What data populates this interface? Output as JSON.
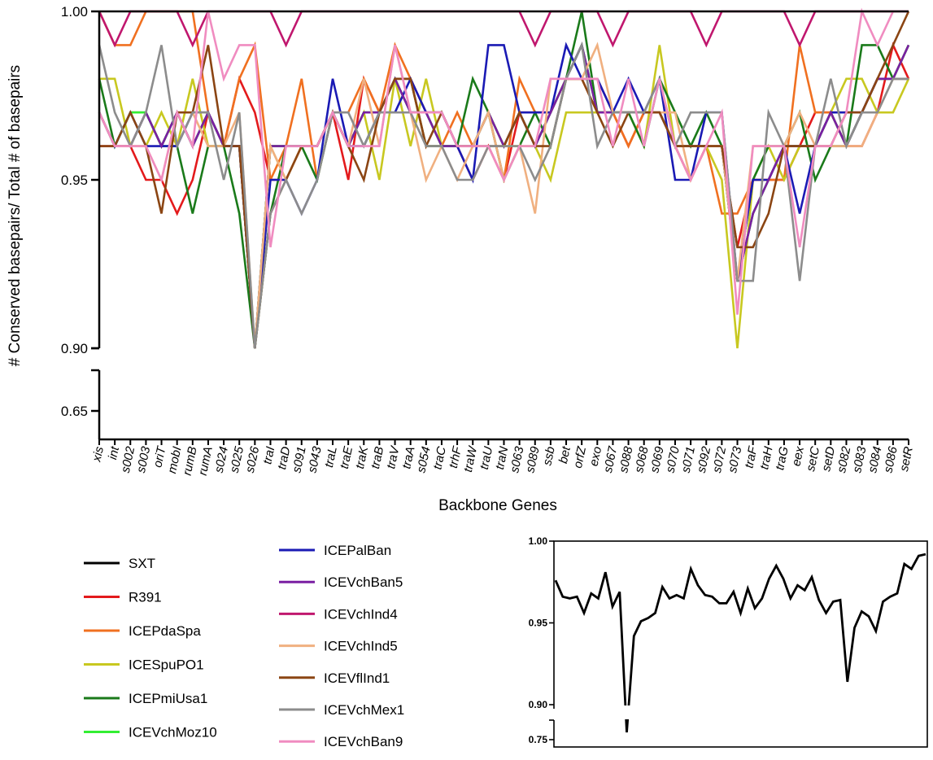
{
  "chart_data": [
    {
      "type": "line",
      "title": "",
      "xlabel": "Backbone Genes",
      "ylabel": "# Conserved basepairs/ Total # of basepairs",
      "ylim": [
        0.9,
        1.0
      ],
      "y_ticks": [
        "1.00",
        "0.95",
        "0.90",
        "0.65"
      ],
      "y_break": {
        "lower_tick": "0.65",
        "lower_value": 0.65
      },
      "grid": false,
      "legend_position": "bottom-left",
      "categories": [
        "xis",
        "int",
        "s002",
        "s003",
        "oriT",
        "mobI",
        "rumB",
        "rumA",
        "s024",
        "s025",
        "s026",
        "traI",
        "traD",
        "s091",
        "s043",
        "traL",
        "traE",
        "traK",
        "traB",
        "traV",
        "traA",
        "s054",
        "traC",
        "trhF",
        "traW",
        "traU",
        "traN",
        "s063",
        "s089",
        "ssb",
        "bet",
        "orfZ",
        "exo",
        "s067",
        "s088",
        "s068",
        "s069",
        "s070",
        "s071",
        "s092",
        "s072",
        "s073",
        "traF",
        "traH",
        "traG",
        "eex",
        "setC",
        "setD",
        "s082",
        "s083",
        "s084",
        "s086",
        "setR"
      ],
      "series": [
        {
          "name": "SXT",
          "color": "#000000",
          "values": [
            0.97,
            0.96,
            0.96,
            0.97,
            0.96,
            0.97,
            0.96,
            0.97,
            0.96,
            0.96,
            0.9,
            0.96,
            0.96,
            0.96,
            0.96,
            0.97,
            0.96,
            0.97,
            0.97,
            0.98,
            0.97,
            0.97,
            0.96,
            0.96,
            0.96,
            0.97,
            0.96,
            0.97,
            0.96,
            0.97,
            0.98,
            0.99,
            0.97,
            0.97,
            0.97,
            0.97,
            0.97,
            0.96,
            0.96,
            0.96,
            0.96,
            0.92,
            0.94,
            0.95,
            0.96,
            0.96,
            0.96,
            0.97,
            0.96,
            0.97,
            0.98,
            0.98,
            0.99
          ]
        },
        {
          "name": "R391",
          "color": "#e31a1c",
          "values": [
            0.96,
            0.96,
            0.96,
            0.95,
            0.95,
            0.94,
            0.95,
            0.97,
            0.96,
            0.98,
            0.97,
            0.95,
            0.95,
            0.96,
            0.96,
            0.97,
            0.95,
            0.98,
            0.97,
            0.98,
            0.98,
            0.97,
            0.97,
            0.96,
            0.95,
            0.96,
            0.95,
            0.97,
            0.97,
            0.97,
            0.98,
            0.98,
            0.98,
            0.97,
            0.96,
            0.97,
            0.97,
            0.96,
            0.95,
            0.96,
            0.96,
            0.93,
            0.95,
            0.95,
            0.95,
            0.96,
            0.97,
            0.97,
            0.96,
            0.96,
            0.97,
            0.99,
            0.98
          ]
        },
        {
          "name": "ICEPdaSpa",
          "color": "#f07020",
          "values": [
            1.0,
            0.99,
            0.99,
            1.0,
            1.0,
            1.0,
            1.0,
            0.97,
            0.96,
            0.98,
            0.99,
            0.95,
            0.96,
            0.98,
            0.95,
            0.97,
            0.97,
            0.98,
            0.97,
            0.99,
            0.98,
            0.96,
            0.96,
            0.97,
            0.96,
            0.97,
            0.95,
            0.98,
            0.97,
            0.97,
            0.98,
            0.98,
            0.97,
            0.97,
            0.96,
            0.97,
            0.97,
            0.96,
            0.95,
            0.96,
            0.94,
            0.94,
            0.95,
            0.95,
            0.95,
            0.99,
            0.97,
            0.97,
            0.97,
            0.97,
            0.98,
            0.98,
            0.98
          ]
        },
        {
          "name": "ICESpuPO1",
          "color": "#c8c820",
          "values": [
            0.98,
            0.98,
            0.96,
            0.96,
            0.97,
            0.96,
            0.98,
            0.96,
            0.96,
            0.96,
            0.9,
            0.96,
            0.95,
            0.96,
            0.96,
            0.97,
            0.96,
            0.97,
            0.95,
            0.98,
            0.96,
            0.98,
            0.96,
            0.96,
            0.96,
            0.97,
            0.96,
            0.96,
            0.96,
            0.95,
            0.97,
            0.97,
            0.97,
            0.97,
            0.97,
            0.96,
            0.99,
            0.96,
            0.96,
            0.96,
            0.95,
            0.9,
            0.95,
            0.96,
            0.95,
            0.96,
            0.96,
            0.97,
            0.98,
            0.98,
            0.97,
            0.97,
            0.98
          ]
        },
        {
          "name": "ICEPmiUsa1",
          "color": "#1a7a1a",
          "values": [
            0.98,
            0.96,
            0.97,
            0.97,
            0.96,
            0.96,
            0.94,
            0.96,
            0.96,
            0.94,
            0.9,
            0.94,
            0.96,
            0.96,
            0.95,
            0.97,
            0.96,
            0.96,
            0.97,
            0.98,
            0.98,
            0.96,
            0.96,
            0.96,
            0.98,
            0.97,
            0.95,
            0.96,
            0.97,
            0.96,
            0.98,
            1.0,
            0.97,
            0.97,
            0.97,
            0.96,
            0.98,
            0.97,
            0.96,
            0.97,
            0.96,
            0.92,
            0.95,
            0.96,
            0.96,
            0.97,
            0.95,
            0.96,
            0.96,
            0.99,
            0.99,
            0.98,
            0.98
          ]
        },
        {
          "name": "ICEVchMoz10",
          "color": "#33ee33",
          "values": [
            0.97,
            0.96,
            0.97,
            0.97,
            0.96,
            0.97,
            0.96,
            0.97,
            0.96,
            0.96,
            0.9,
            0.96,
            0.96,
            0.96,
            0.96,
            0.97,
            0.96,
            0.97,
            0.97,
            0.98,
            0.97,
            0.97,
            0.96,
            0.96,
            0.96,
            0.97,
            0.96,
            0.97,
            0.96,
            0.97,
            0.98,
            0.99,
            0.97,
            0.97,
            0.97,
            0.97,
            0.97,
            0.96,
            0.96,
            0.96,
            0.96,
            0.92,
            0.94,
            0.95,
            0.96,
            0.96,
            0.96,
            0.97,
            0.96,
            0.97,
            0.98,
            0.98,
            0.99
          ]
        },
        {
          "name": "ICEPalBan",
          "color": "#1a1ab4",
          "values": [
            0.97,
            0.96,
            0.97,
            0.96,
            0.96,
            0.96,
            0.97,
            0.97,
            0.96,
            0.96,
            0.9,
            0.95,
            0.95,
            0.94,
            0.95,
            0.98,
            0.96,
            0.96,
            0.97,
            0.97,
            0.98,
            0.97,
            0.97,
            0.96,
            0.95,
            0.99,
            0.99,
            0.97,
            0.97,
            0.97,
            0.99,
            0.98,
            0.98,
            0.97,
            0.98,
            0.97,
            0.98,
            0.95,
            0.95,
            0.97,
            0.97,
            0.92,
            0.95,
            0.95,
            0.96,
            0.94,
            0.96,
            0.97,
            0.97,
            0.97,
            0.98,
            0.98,
            0.98
          ]
        },
        {
          "name": "ICEVchBan5",
          "color": "#7a1fa2",
          "values": [
            0.97,
            0.96,
            0.96,
            0.97,
            0.96,
            0.97,
            0.96,
            0.97,
            0.96,
            0.96,
            0.9,
            0.96,
            0.96,
            0.96,
            0.96,
            0.97,
            0.96,
            0.97,
            0.97,
            0.98,
            0.97,
            0.97,
            0.96,
            0.96,
            0.96,
            0.97,
            0.96,
            0.97,
            0.96,
            0.97,
            0.98,
            0.99,
            0.97,
            0.97,
            0.97,
            0.97,
            0.97,
            0.96,
            0.96,
            0.96,
            0.96,
            0.92,
            0.94,
            0.95,
            0.96,
            0.96,
            0.96,
            0.97,
            0.96,
            0.97,
            0.98,
            0.98,
            0.99
          ]
        },
        {
          "name": "ICEVchInd4",
          "color": "#c0176e",
          "values": [
            1.0,
            0.99,
            1.0,
            1.0,
            1.0,
            1.0,
            0.99,
            1.0,
            1.0,
            1.0,
            1.0,
            1.0,
            0.99,
            1.0,
            1.0,
            1.0,
            1.0,
            1.0,
            1.0,
            1.0,
            1.0,
            1.0,
            1.0,
            1.0,
            1.0,
            1.0,
            1.0,
            1.0,
            0.99,
            1.0,
            1.0,
            1.0,
            1.0,
            0.99,
            1.0,
            1.0,
            1.0,
            1.0,
            1.0,
            0.99,
            1.0,
            1.0,
            1.0,
            1.0,
            1.0,
            0.99,
            1.0,
            1.0,
            1.0,
            1.0,
            1.0,
            1.0,
            1.0
          ]
        },
        {
          "name": "ICEVchInd5",
          "color": "#f0b080",
          "values": [
            0.97,
            0.96,
            0.96,
            0.96,
            0.95,
            0.97,
            0.97,
            0.96,
            0.96,
            0.97,
            0.9,
            0.96,
            0.95,
            0.96,
            0.96,
            0.97,
            0.96,
            0.98,
            0.96,
            0.99,
            0.97,
            0.95,
            0.96,
            0.95,
            0.96,
            0.97,
            0.95,
            0.96,
            0.94,
            0.98,
            0.98,
            0.98,
            0.99,
            0.97,
            0.97,
            0.97,
            0.97,
            0.97,
            0.95,
            0.96,
            0.96,
            0.92,
            0.96,
            0.96,
            0.96,
            0.97,
            0.96,
            0.96,
            0.96,
            0.96,
            0.97,
            0.98,
            0.98
          ]
        },
        {
          "name": "ICEVflInd1",
          "color": "#8b4513",
          "values": [
            0.96,
            0.96,
            0.97,
            0.96,
            0.94,
            0.97,
            0.97,
            0.99,
            0.96,
            0.96,
            0.9,
            0.94,
            0.95,
            0.96,
            0.96,
            0.97,
            0.96,
            0.95,
            0.97,
            0.98,
            0.98,
            0.96,
            0.97,
            0.96,
            0.96,
            0.96,
            0.96,
            0.97,
            0.96,
            0.96,
            0.98,
            0.98,
            0.97,
            0.96,
            0.97,
            0.97,
            0.97,
            0.96,
            0.96,
            0.96,
            0.96,
            0.93,
            0.93,
            0.94,
            0.96,
            0.96,
            0.96,
            0.96,
            0.97,
            0.97,
            0.98,
            0.99,
            1.0
          ]
        },
        {
          "name": "ICEVchMex1",
          "color": "#8c8c8c",
          "values": [
            0.99,
            0.97,
            0.96,
            0.97,
            0.99,
            0.96,
            0.97,
            0.97,
            0.95,
            0.97,
            0.9,
            0.94,
            0.95,
            0.94,
            0.95,
            0.97,
            0.97,
            0.96,
            0.97,
            0.97,
            0.97,
            0.96,
            0.96,
            0.95,
            0.95,
            0.96,
            0.96,
            0.96,
            0.95,
            0.96,
            0.98,
            0.99,
            0.96,
            0.97,
            0.97,
            0.97,
            0.98,
            0.96,
            0.97,
            0.97,
            0.97,
            0.92,
            0.92,
            0.97,
            0.96,
            0.92,
            0.96,
            0.98,
            0.96,
            0.97,
            0.97,
            0.98,
            0.98
          ]
        },
        {
          "name": "ICEVchBan9",
          "color": "#f08cc0",
          "values": [
            0.97,
            0.96,
            0.96,
            0.96,
            0.95,
            0.97,
            0.96,
            1.0,
            0.98,
            0.99,
            0.99,
            0.93,
            0.96,
            0.96,
            0.96,
            0.97,
            0.96,
            0.96,
            0.96,
            0.99,
            0.97,
            0.97,
            0.97,
            0.96,
            0.96,
            0.96,
            0.95,
            0.96,
            0.96,
            0.98,
            0.98,
            0.98,
            0.98,
            0.96,
            0.98,
            0.96,
            0.98,
            0.96,
            0.95,
            0.96,
            0.97,
            0.91,
            0.96,
            0.96,
            0.96,
            0.93,
            0.96,
            0.96,
            0.97,
            1.0,
            0.99,
            1.0,
            1.0
          ]
        }
      ]
    },
    {
      "type": "line",
      "title": "",
      "xlabel": "",
      "ylabel": "",
      "ylim": [
        0.9,
        1.0
      ],
      "y_ticks": [
        "1.00",
        "0.95",
        "0.90",
        "0.75"
      ],
      "y_break": {
        "lower_tick": "0.75",
        "lower_value": 0.75
      },
      "grid": false,
      "series": [
        {
          "color": "#000000",
          "values": [
            0.976,
            0.966,
            0.965,
            0.966,
            0.956,
            0.968,
            0.965,
            0.981,
            0.96,
            0.969,
            0.76,
            0.942,
            0.951,
            0.953,
            0.956,
            0.972,
            0.965,
            0.967,
            0.965,
            0.983,
            0.973,
            0.967,
            0.966,
            0.962,
            0.962,
            0.969,
            0.956,
            0.971,
            0.959,
            0.965,
            0.977,
            0.985,
            0.977,
            0.965,
            0.973,
            0.97,
            0.978,
            0.964,
            0.956,
            0.963,
            0.964,
            0.914,
            0.947,
            0.957,
            0.954,
            0.945,
            0.963,
            0.966,
            0.968,
            0.986,
            0.983,
            0.991,
            0.992
          ]
        }
      ]
    }
  ]
}
